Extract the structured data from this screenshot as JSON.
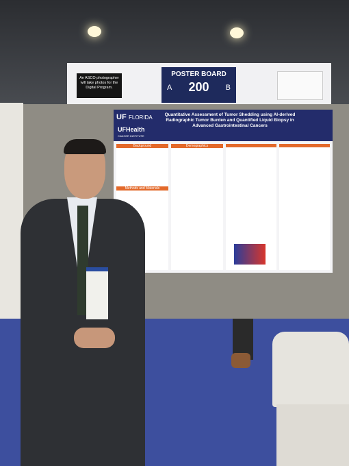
{
  "sign": {
    "photographer_note": "An ASCO photographer will take photos for the Digital Program.",
    "board_label": "POSTER BOARD",
    "side_a": "A",
    "number": "200",
    "side_b": "B"
  },
  "poster": {
    "logo_uf": "UF",
    "logo_florida": "FLORIDA",
    "logo_health": "UFHealth",
    "logo_institute": "CANCER INSTITUTE",
    "title": "Quantitative Assessment of Tumor Shedding using AI-derived Radiographic Tumor Burden and Quantified Liquid Biopsy in Advanced Gastrointestinal Cancers",
    "sections": [
      "Background",
      "Demographics",
      "Methods and Materials"
    ]
  }
}
